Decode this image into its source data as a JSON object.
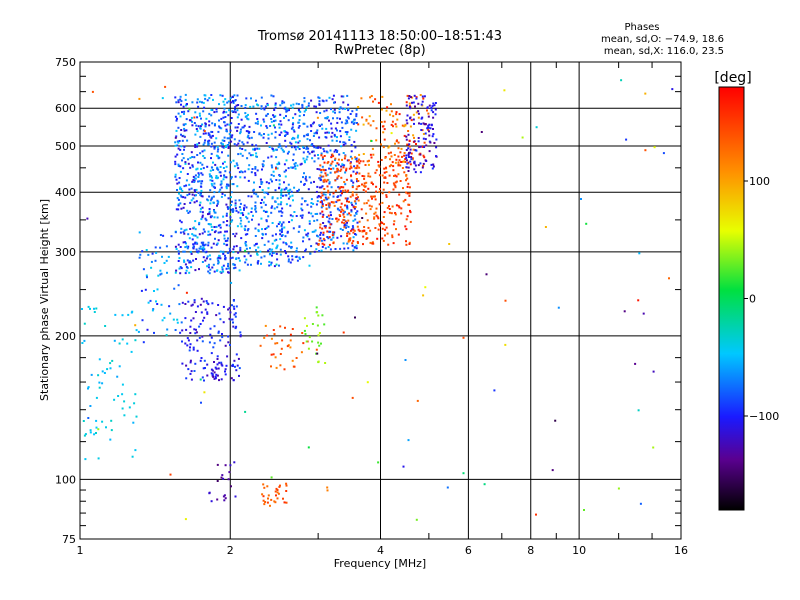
{
  "chart_data": {
    "type": "scatter",
    "title": "Tromsø 20141113 18:50:00–18:51:43",
    "subtitle": "RwPretec (8p)",
    "stats_heading": "Phases",
    "stats_lines": [
      "mean, sd,O: −74.9, 18.6",
      "mean, sd,X: 116.0, 23.5"
    ],
    "xlabel": "Frequency [MHz]",
    "ylabel": "Stationary phase Virtual Height [km]",
    "x_scale": "log",
    "y_scale": "log",
    "xlim": [
      1,
      16
    ],
    "ylim": [
      75,
      750
    ],
    "x_ticks": [
      1,
      2,
      4,
      6,
      8,
      10,
      16
    ],
    "x_tick_labels": [
      "1",
      "2",
      "4",
      "6",
      "8",
      "10",
      "16"
    ],
    "y_ticks": [
      75,
      100,
      200,
      300,
      400,
      500,
      600,
      750
    ],
    "y_tick_labels": [
      "75",
      "100",
      "200",
      "300",
      "400",
      "500",
      "600",
      "750"
    ],
    "grid": true,
    "colorbar": {
      "unit": "[deg]",
      "range": [
        -180,
        180
      ],
      "ticks": [
        100,
        0,
        -100
      ],
      "tick_labels": [
        "100",
        "0",
        "−100"
      ]
    },
    "clusters": [
      {
        "name": "low-cyan",
        "f": [
          1.0,
          1.3
        ],
        "h": [
          110,
          230
        ],
        "phase": [
          -60,
          -30
        ],
        "n": 70
      },
      {
        "name": "mid-blue-low",
        "f": [
          1.3,
          1.6
        ],
        "h": [
          200,
          330
        ],
        "phase": [
          -100,
          -40
        ],
        "n": 60
      },
      {
        "name": "o-trace-dense-1",
        "f": [
          1.55,
          2.1
        ],
        "h": [
          270,
          640
        ],
        "phase": [
          -120,
          -40
        ],
        "n": 700
      },
      {
        "name": "o-trace-dense-2",
        "f": [
          2.1,
          2.9
        ],
        "h": [
          280,
          640
        ],
        "phase": [
          -110,
          -40
        ],
        "n": 550
      },
      {
        "name": "o-trace-dense-3",
        "f": [
          2.9,
          3.6
        ],
        "h": [
          300,
          640
        ],
        "phase": [
          -120,
          -50
        ],
        "n": 350
      },
      {
        "name": "e-layer-blue",
        "f": [
          1.6,
          2.1
        ],
        "h": [
          160,
          240
        ],
        "phase": [
          -130,
          -80
        ],
        "n": 160
      },
      {
        "name": "x-trace-orange",
        "f": [
          3.0,
          4.6
        ],
        "h": [
          310,
          480
        ],
        "phase": [
          120,
          175
        ],
        "n": 380
      },
      {
        "name": "x-trace-top",
        "f": [
          3.6,
          5.0
        ],
        "h": [
          450,
          640
        ],
        "phase": [
          90,
          170
        ],
        "n": 120
      },
      {
        "name": "o-trace-high-blue",
        "f": [
          4.5,
          5.2
        ],
        "h": [
          440,
          640
        ],
        "phase": [
          -140,
          -90
        ],
        "n": 120
      },
      {
        "name": "orange-low",
        "f": [
          2.3,
          2.9
        ],
        "h": [
          170,
          210
        ],
        "phase": [
          110,
          160
        ],
        "n": 35
      },
      {
        "name": "green-low",
        "f": [
          2.8,
          3.1
        ],
        "h": [
          175,
          230
        ],
        "phase": [
          20,
          50
        ],
        "n": 25
      },
      {
        "name": "blue-90km",
        "f": [
          1.8,
          2.05
        ],
        "h": [
          90,
          110
        ],
        "phase": [
          -150,
          -110
        ],
        "n": 20
      },
      {
        "name": "orange-90km",
        "f": [
          2.3,
          2.6
        ],
        "h": [
          88,
          98
        ],
        "phase": [
          120,
          160
        ],
        "n": 30
      },
      {
        "name": "sparse-scatter",
        "f": [
          1.0,
          16.0
        ],
        "h": [
          80,
          700
        ],
        "phase": [
          -160,
          170
        ],
        "n": 90
      }
    ]
  }
}
